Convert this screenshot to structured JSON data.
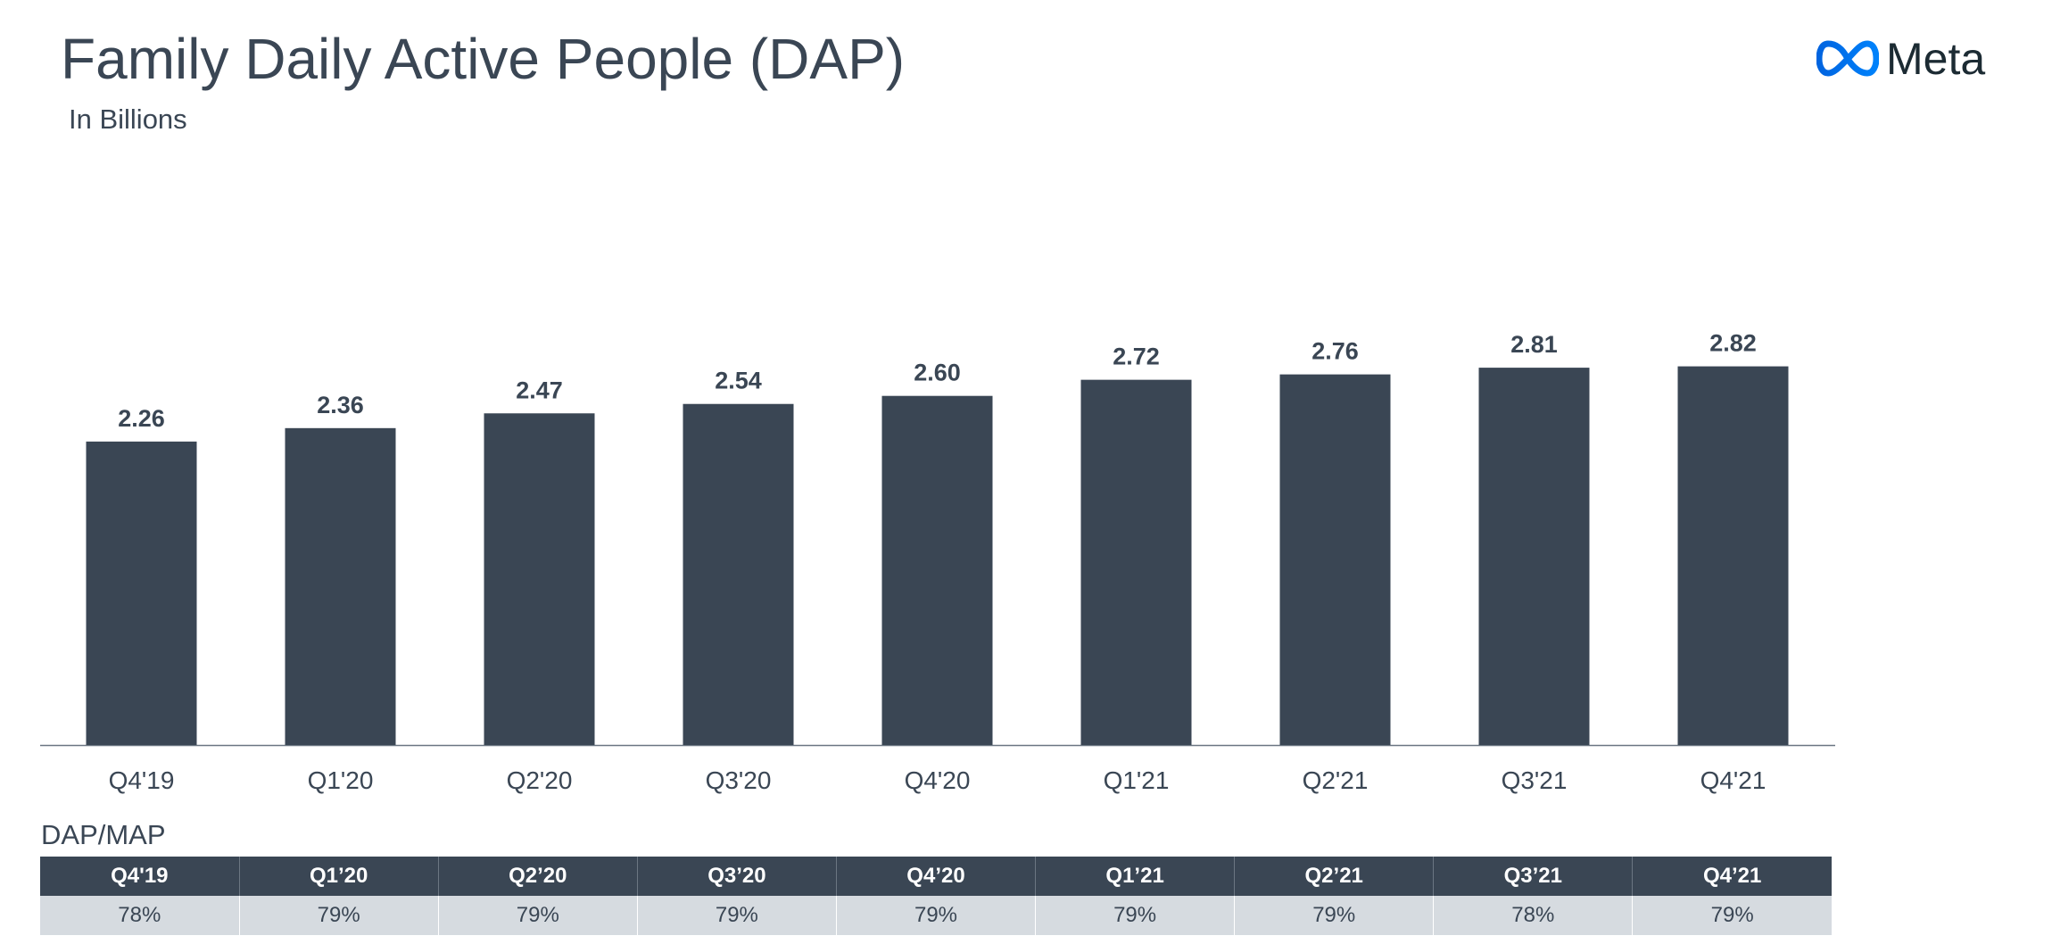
{
  "header": {
    "title": "Family Daily Active People (DAP)",
    "subtitle": "In Billions"
  },
  "logo": {
    "icon": "meta-infinity-logo-icon",
    "text": "Meta",
    "colors": {
      "gradient_start": "#0064e0",
      "gradient_end": "#0082fb"
    }
  },
  "chart_data": {
    "type": "bar",
    "categories": [
      "Q4'19",
      "Q1'20",
      "Q2'20",
      "Q3'20",
      "Q4'20",
      "Q1'21",
      "Q2'21",
      "Q3'21",
      "Q4'21"
    ],
    "values": [
      2.26,
      2.36,
      2.47,
      2.54,
      2.6,
      2.72,
      2.76,
      2.81,
      2.82
    ],
    "value_labels": [
      "2.26",
      "2.36",
      "2.47",
      "2.54",
      "2.60",
      "2.72",
      "2.76",
      "2.81",
      "2.82"
    ],
    "title": "Family Daily Active People (DAP)",
    "subtitle": "In Billions",
    "xlabel": "",
    "ylabel": "",
    "ylim": [
      0,
      2.9
    ],
    "grid": false,
    "bar_color": "#3a4654"
  },
  "table": {
    "label": "DAP/MAP",
    "headers": [
      "Q4'19",
      "Q1’20",
      "Q2’20",
      "Q3’20",
      "Q4’20",
      "Q1’21",
      "Q2’21",
      "Q3’21",
      "Q4’21"
    ],
    "values": [
      "78%",
      "79%",
      "79%",
      "79%",
      "79%",
      "79%",
      "79%",
      "78%",
      "79%"
    ],
    "colors": {
      "header_bg": "#3a4654",
      "row_bg": "#d6dbe0"
    }
  }
}
